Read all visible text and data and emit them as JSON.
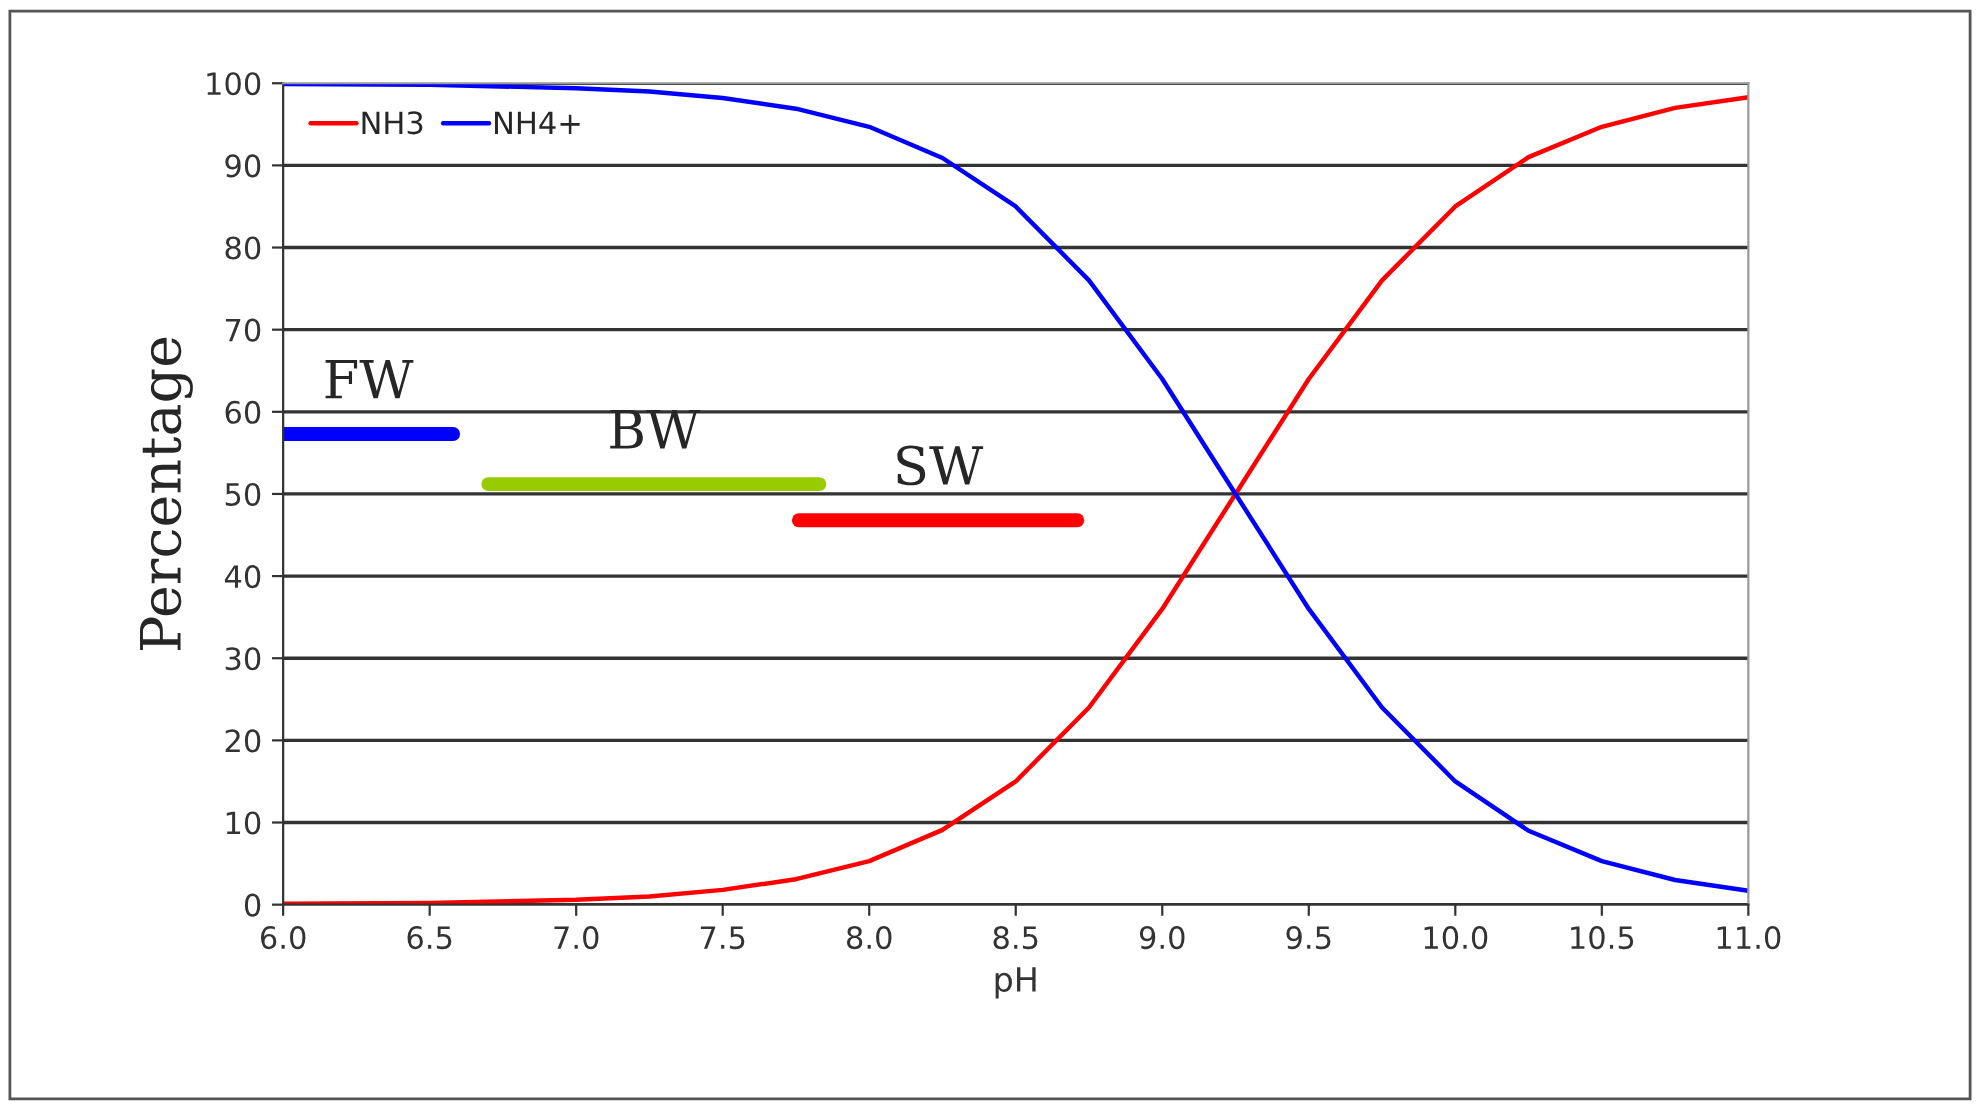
{
  "chart_data": {
    "type": "line",
    "xlabel": "pH",
    "ylabel": "Percentage",
    "x": [
      6.0,
      6.5,
      7.0,
      7.25,
      7.5,
      7.75,
      8.0,
      8.25,
      8.5,
      8.75,
      9.0,
      9.25,
      9.5,
      9.75,
      10.0,
      10.25,
      10.5,
      10.75,
      11.0
    ],
    "series": [
      {
        "name": "NH3",
        "color": "#ff0000",
        "values": [
          0.1,
          0.2,
          0.6,
          1.0,
          1.8,
          3.1,
          5.3,
          9.1,
          15.0,
          24.0,
          36.0,
          50.0,
          64.0,
          76.0,
          85.0,
          91.0,
          94.7,
          97.0,
          98.3
        ]
      },
      {
        "name": "NH4+",
        "color": "#0000ff",
        "values": [
          99.9,
          99.8,
          99.4,
          99.0,
          98.2,
          96.9,
          94.7,
          90.9,
          85.0,
          76.0,
          64.0,
          50.0,
          36.0,
          24.0,
          15.0,
          9.0,
          5.3,
          3.0,
          1.7
        ]
      },
      {
        "name": "FW",
        "color": "#0000ff",
        "x": [
          6.0,
          6.58
        ],
        "values": [
          57.3,
          57.3
        ]
      },
      {
        "name": "BW",
        "color": "#99cc00",
        "x": [
          6.7,
          7.83
        ],
        "values": [
          51.2,
          51.2
        ]
      },
      {
        "name": "SW",
        "color": "#ff0000",
        "x": [
          7.76,
          8.71
        ],
        "values": [
          46.8,
          46.8
        ]
      }
    ],
    "xlim": [
      6.0,
      11.0
    ],
    "ylim": [
      0,
      100
    ],
    "xticks": [
      {
        "value": 6,
        "label": "6.0"
      },
      6.5,
      {
        "value": 7,
        "label": "7.0"
      },
      7.5,
      {
        "value": 8,
        "label": "8.0"
      },
      8.5,
      {
        "value": 9,
        "label": "9.0"
      },
      9.5,
      {
        "value": 10,
        "label": "10.0"
      },
      10.5,
      {
        "value": 11,
        "label": "11.0"
      }
    ],
    "yticks": [
      0,
      10,
      20,
      30,
      40,
      50,
      60,
      70,
      80,
      90,
      100
    ],
    "grid": "y",
    "legend": "top left",
    "marker": "none",
    "line_style": "solid"
  }
}
